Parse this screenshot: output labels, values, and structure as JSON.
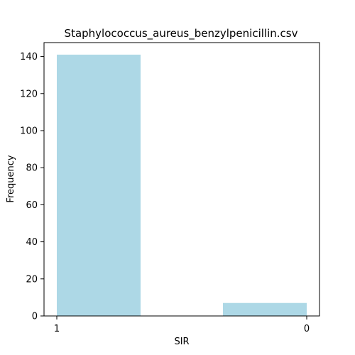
{
  "chart_data": {
    "type": "bar",
    "title": "Staphylococcus_aureus_benzylpenicillin.csv",
    "xlabel": "SIR",
    "ylabel": "Frequency",
    "categories": [
      "1",
      "0"
    ],
    "values": [
      141,
      7
    ],
    "ylim": [
      0,
      147.5
    ],
    "y_ticks": [
      0,
      20,
      40,
      60,
      80,
      100,
      120,
      140
    ],
    "grid": false,
    "legend": "none",
    "bar_color": "#add8e6"
  }
}
